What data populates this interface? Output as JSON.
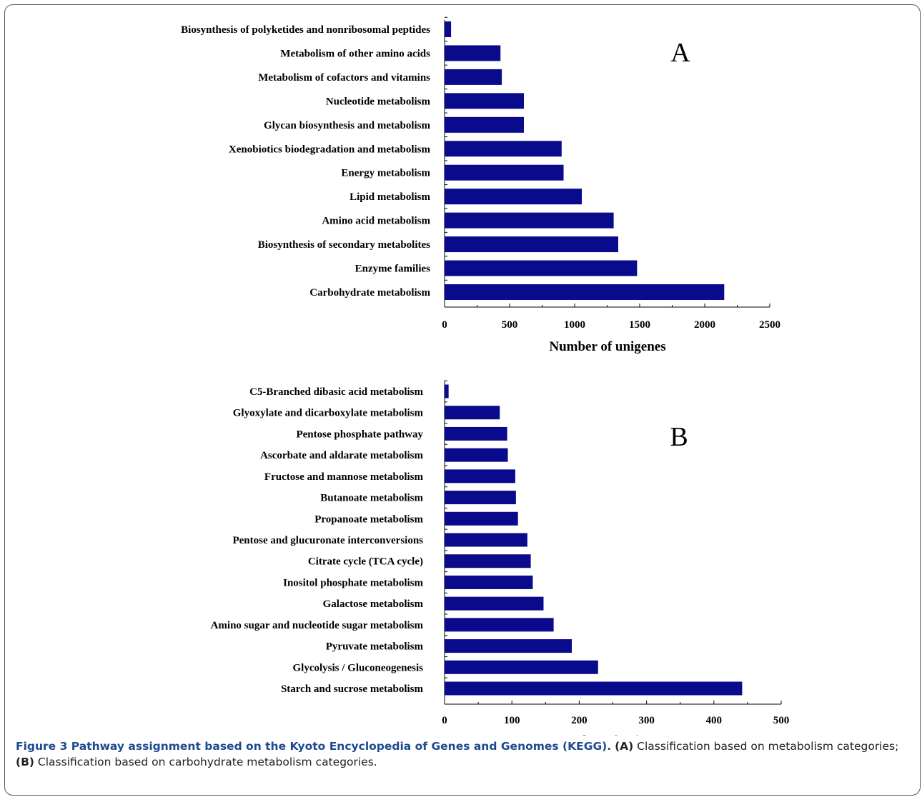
{
  "chart_data": [
    {
      "type": "bar",
      "orientation": "horizontal",
      "panel_label": "A",
      "categories": [
        "Biosynthesis of polyketides and nonribosomal peptides",
        "Metabolism of other amino acids",
        "Metabolism of cofactors and vitamins",
        "Nucleotide metabolism",
        "Glycan biosynthesis and metabolism",
        "Xenobiotics biodegradation and metabolism",
        "Energy metabolism",
        "Lipid metabolism",
        "Amino acid metabolism",
        "Biosynthesis of secondary metabolites",
        "Enzyme families",
        "Carbohydrate metabolism"
      ],
      "values": [
        50,
        430,
        440,
        610,
        610,
        900,
        915,
        1055,
        1300,
        1335,
        1480,
        2150
      ],
      "xlabel": "Number of unigenes",
      "xlim": [
        0,
        2500
      ],
      "xticks": [
        "0",
        "500",
        "1000",
        "1500",
        "2000",
        "2500"
      ],
      "grid": false,
      "bar_color": "#0a0a8c"
    },
    {
      "type": "bar",
      "orientation": "horizontal",
      "panel_label": "B",
      "categories": [
        "C5-Branched dibasic acid metabolism",
        "Glyoxylate and dicarboxylate metabolism",
        "Pentose phosphate pathway",
        "Ascorbate and aldarate metabolism",
        "Fructose and mannose metabolism",
        "Butanoate metabolism",
        "Propanoate metabolism",
        "Pentose and glucuronate interconversions",
        "Citrate cycle (TCA cycle)",
        "Inositol phosphate metabolism",
        "Galactose metabolism",
        "Amino sugar and nucleotide sugar metabolism",
        "Pyruvate metabolism",
        "Glycolysis / Gluconeogenesis",
        "Starch and sucrose metabolism"
      ],
      "values": [
        6,
        82,
        93,
        94,
        105,
        106,
        109,
        123,
        128,
        131,
        147,
        162,
        189,
        228,
        442
      ],
      "xlabel": "Number of unigenes",
      "xlim": [
        0,
        500
      ],
      "xticks": [
        "0",
        "100",
        "200",
        "300",
        "400",
        "500"
      ],
      "grid": false,
      "bar_color": "#0a0a8c"
    }
  ],
  "caption": {
    "title": "Figure 3 Pathway assignment based on the Kyoto Encyclopedia of Genes and Genomes (KEGG).",
    "a_tag": "(A)",
    "a_text": " Classification based on metabolism categories; ",
    "b_tag": "(B)",
    "b_text": " Classification based on carbohydrate metabolism categories."
  }
}
